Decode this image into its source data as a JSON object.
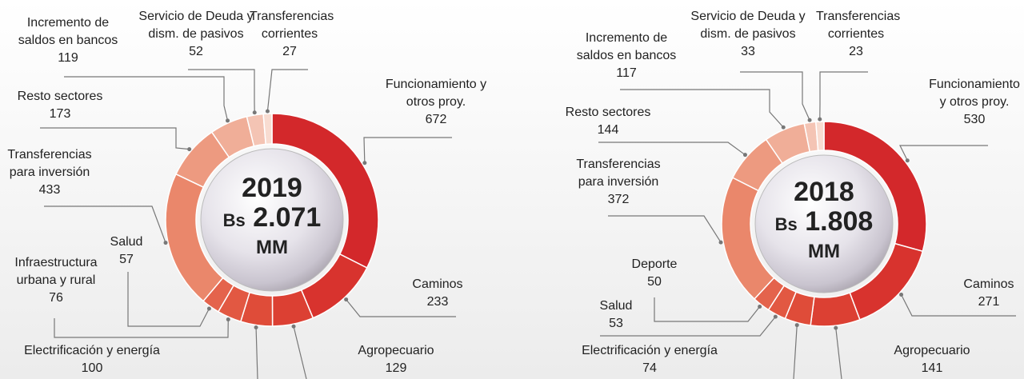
{
  "chart_data": [
    {
      "type": "pie",
      "center_title": "2019",
      "center_prefix": "Bs",
      "center_value": "2.071",
      "center_unit": "MM",
      "categories": [
        "Funcionamiento y otros proy.",
        "Caminos",
        "Agropecuario",
        "Electrificación y energía",
        "Infraestructura urbana y rural",
        "Salud",
        "Transferencias para inversión",
        "Resto sectores",
        "Incremento de saldos en bancos",
        "Servicio de Deuda y dism. de pasivos",
        "Transferencias corrientes"
      ],
      "values": [
        672,
        233,
        129,
        100,
        76,
        57,
        433,
        173,
        119,
        52,
        27
      ],
      "colors": [
        "#d3282b",
        "#d8332e",
        "#dc4033",
        "#df4c39",
        "#e25842",
        "#e4634c",
        "#ea876b",
        "#ed9a80",
        "#f0ae98",
        "#f4c4b4",
        "#f8dcd1"
      ]
    },
    {
      "type": "pie",
      "center_title": "2018",
      "center_prefix": "Bs",
      "center_value": "1.808",
      "center_unit": "MM",
      "categories": [
        "Funcionamiento y otros proy.",
        "Caminos",
        "Agropecuario",
        "Electrificación y energía",
        "Salud",
        "Deporte",
        "Transferencias para inversión",
        "Resto sectores",
        "Incremento de saldos en bancos",
        "Servicio de Deuda y dism. de pasivos",
        "Transferencias corrientes"
      ],
      "values": [
        530,
        271,
        141,
        74,
        53,
        50,
        372,
        144,
        117,
        33,
        23
      ],
      "colors": [
        "#d3282b",
        "#d8332e",
        "#dc4033",
        "#df4c39",
        "#e25842",
        "#e4634c",
        "#ea876b",
        "#ed9a80",
        "#f0ae98",
        "#f4c4b4",
        "#f8dcd1"
      ]
    }
  ]
}
